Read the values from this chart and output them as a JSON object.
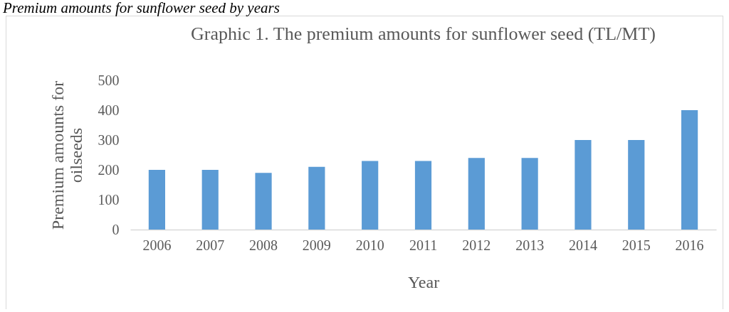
{
  "chart_data": {
    "type": "bar",
    "title": "Graphic 1. The premium amounts for sunflower seed (TL/MT)",
    "xlabel": "Year",
    "ylabel": "Premium amounts for oilseeds",
    "annotations": [
      "Premium amounts for sunflower seed by years"
    ],
    "categories": [
      "2006",
      "2007",
      "2008",
      "2009",
      "2010",
      "2011",
      "2012",
      "2013",
      "2014",
      "2015",
      "2016"
    ],
    "values": [
      200,
      200,
      190,
      210,
      230,
      230,
      240,
      240,
      300,
      300,
      400
    ],
    "color": "#5b9bd5",
    "ylim": [
      0,
      500
    ],
    "yticks": [
      0,
      100,
      200,
      300,
      400,
      500
    ],
    "grid": false
  }
}
